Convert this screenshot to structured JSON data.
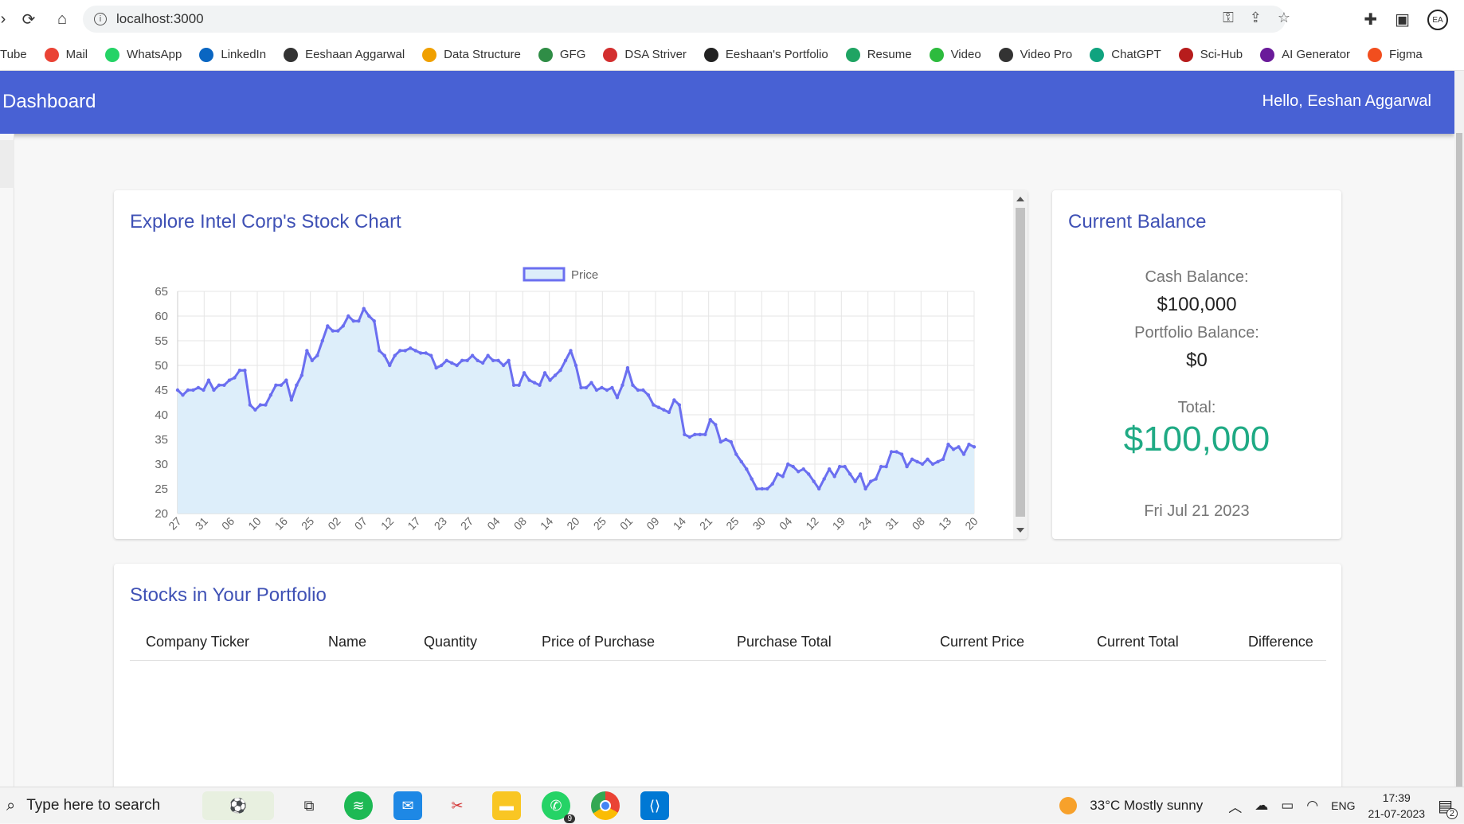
{
  "browser": {
    "url": "localhost:3000",
    "bookmarks": [
      {
        "label": "Tube",
        "icon": "youtube-icon",
        "color": ""
      },
      {
        "label": "Mail",
        "icon": "gmail-icon",
        "color": "#ea4335"
      },
      {
        "label": "WhatsApp",
        "icon": "whatsapp-icon",
        "color": "#25d366"
      },
      {
        "label": "LinkedIn",
        "icon": "linkedin-icon",
        "color": "#0a66c2"
      },
      {
        "label": "Eeshaan Aggarwal",
        "icon": "ea-logo-icon",
        "color": "#333333"
      },
      {
        "label": "Data Structure",
        "icon": "data-structure-icon",
        "color": "#f0a000"
      },
      {
        "label": "GFG",
        "icon": "gfg-icon",
        "color": "#2f8d46"
      },
      {
        "label": "DSA Striver",
        "icon": "tuf-icon",
        "color": "#d32f2f"
      },
      {
        "label": "Eeshaan's Portfolio",
        "icon": "globe-icon",
        "color": "#222222"
      },
      {
        "label": "Resume",
        "icon": "google-drive-icon",
        "color": "#1fa463"
      },
      {
        "label": "Video",
        "icon": "ae-icon",
        "color": "#2dbb3e"
      },
      {
        "label": "Video Pro",
        "icon": "ae-pro-icon",
        "color": "#333333"
      },
      {
        "label": "ChatGPT",
        "icon": "chatgpt-icon",
        "color": "#10a37f"
      },
      {
        "label": "Sci-Hub",
        "icon": "scihub-icon",
        "color": "#b71c1c"
      },
      {
        "label": "AI Generator",
        "icon": "ai-generator-icon",
        "color": "#6a1b9a"
      },
      {
        "label": "Figma",
        "icon": "figma-icon",
        "color": "#f24e1e"
      }
    ]
  },
  "header": {
    "title": "Dashboard",
    "greeting": "Hello, Eeshan Aggarwal"
  },
  "chart_card": {
    "title": "Explore Intel Corp's Stock Chart"
  },
  "balance": {
    "title": "Current Balance",
    "cash_label": "Cash Balance:",
    "cash_value": "$100,000",
    "portfolio_label": "Portfolio Balance:",
    "portfolio_value": "$0",
    "total_label": "Total:",
    "total_value": "$100,000",
    "date": "Fri Jul 21 2023"
  },
  "portfolio": {
    "title": "Stocks in Your Portfolio",
    "columns": [
      "Company Ticker",
      "Name",
      "Quantity",
      "Price of Purchase",
      "Purchase Total",
      "Current Price",
      "Current Total",
      "Difference"
    ]
  },
  "taskbar": {
    "search_placeholder": "Type here to search",
    "weather": "33°C  Mostly sunny",
    "lang": "ENG",
    "time": "17:39",
    "date": "21-07-2023",
    "whatsapp_badge": "9",
    "notif_count": "2"
  },
  "chart_data": {
    "type": "area",
    "title": "",
    "legend": [
      "Price"
    ],
    "legend_position": "top-center",
    "line_color": "#6b6ff0",
    "fill_color": "#ddeefa",
    "ylim": [
      20,
      65
    ],
    "y_ticks": [
      65,
      60,
      55,
      50,
      45,
      40,
      35,
      30,
      25,
      20
    ],
    "x_ticks": [
      "27",
      "31",
      "06",
      "10",
      "16",
      "25",
      "02",
      "07",
      "12",
      "17",
      "23",
      "27",
      "04",
      "08",
      "14",
      "20",
      "25",
      "01",
      "09",
      "14",
      "21",
      "25",
      "30",
      "04",
      "12",
      "19",
      "24",
      "31",
      "08",
      "13",
      "20"
    ],
    "grid": true,
    "series": [
      {
        "name": "Price",
        "values": [
          45,
          44,
          45,
          45,
          45.5,
          45,
          47,
          45,
          46,
          46,
          47,
          47.5,
          49,
          49,
          42,
          41,
          42,
          42,
          44,
          46,
          46,
          47,
          43,
          46,
          48,
          53,
          51,
          52,
          55,
          58,
          57,
          57,
          58,
          60,
          59,
          59,
          61.5,
          60,
          59,
          53,
          52,
          50,
          52,
          53,
          53,
          53.5,
          53,
          52.5,
          52.5,
          52,
          49.5,
          50,
          51,
          50.5,
          50,
          51,
          51,
          52,
          51,
          50.5,
          52,
          51,
          51,
          50,
          51,
          46,
          46,
          48.5,
          47,
          46.5,
          46,
          48.5,
          47,
          48,
          49,
          51,
          53,
          50,
          45.5,
          45.5,
          46.5,
          45,
          45.5,
          45,
          45.5,
          43.5,
          46,
          49.5,
          46,
          45,
          45,
          44,
          42,
          41.5,
          41,
          40.5,
          43,
          42,
          36,
          35.5,
          36,
          36,
          36,
          39,
          38,
          34.5,
          35,
          34.5,
          32,
          30.5,
          29,
          27,
          25,
          25,
          25,
          26,
          28,
          27.5,
          30,
          29.5,
          28.5,
          29,
          28,
          26.5,
          25,
          27,
          29,
          27.5,
          29.5,
          29.5,
          28,
          26.5,
          28,
          25,
          26.5,
          27,
          29.5,
          29.5,
          32.5,
          32.5,
          32,
          29.5,
          31,
          30.5,
          30,
          31,
          30,
          30.5,
          31,
          34,
          33,
          33.5,
          32,
          34,
          33.5
        ]
      }
    ]
  }
}
